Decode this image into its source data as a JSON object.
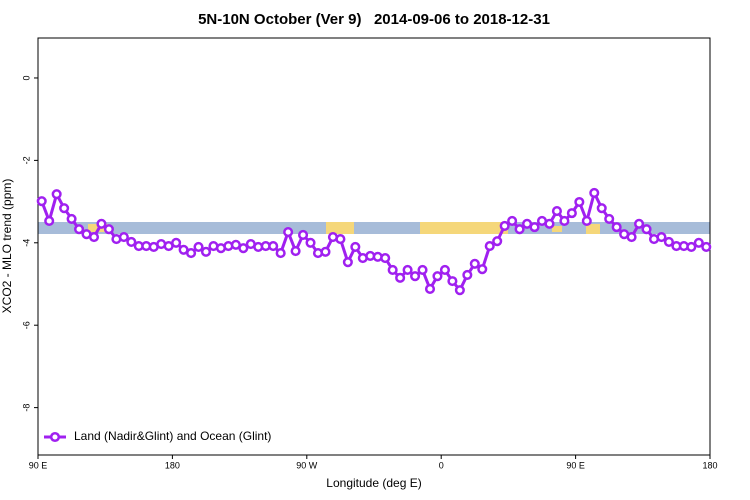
{
  "chart_data": {
    "type": "line",
    "title": "5N-10N October (Ver 9)   2014-09-06 to 2018-12-31",
    "xlabel": "Longitude (deg E)",
    "ylabel": "XCO2 - MLO trend (ppm)",
    "xlim": [
      90,
      540
    ],
    "ylim": [
      -9.15,
      0.97
    ],
    "xticks": [
      {
        "value": 90,
        "label": "90 E"
      },
      180,
      {
        "value": 270,
        "label": "90 W"
      },
      {
        "value": 360,
        "label": "0"
      },
      {
        "value": 450,
        "label": "90 E"
      },
      {
        "value": 540,
        "label": "180"
      }
    ],
    "yticks": [
      0,
      -2,
      -4,
      -6,
      -8
    ],
    "legend": "bottom-left",
    "x": [
      92.5,
      97.5,
      102.5,
      107.5,
      112.5,
      117.5,
      122.5,
      127.5,
      132.5,
      137.5,
      142.5,
      147.5,
      152.5,
      157.5,
      162.5,
      167.5,
      172.5,
      177.5,
      182.5,
      187.5,
      192.5,
      197.5,
      202.5,
      207.5,
      212.5,
      217.5,
      222.5,
      227.5,
      232.5,
      237.5,
      242.5,
      247.5,
      252.5,
      257.5,
      262.5,
      267.5,
      272.5,
      277.5,
      282.5,
      287.5,
      292.5,
      297.5,
      302.5,
      307.5,
      312.5,
      317.5,
      322.5,
      327.5,
      332.5,
      337.5,
      342.5,
      347.5,
      352.5,
      357.5,
      362.5,
      367.5,
      372.5,
      377.5,
      382.5,
      387.5,
      392.5,
      397.5,
      402.5,
      407.5,
      412.5,
      417.5,
      422.5,
      427.5,
      432.5,
      437.5,
      442.5,
      447.5,
      452.5,
      457.5,
      462.5,
      467.5,
      472.5,
      477.5,
      482.5,
      487.5,
      492.5,
      497.5,
      502.5,
      507.5,
      512.5,
      517.5,
      522.5,
      527.5,
      532.5,
      537.5
    ],
    "series": [
      {
        "name": "Land (Nadir&Glint) and Ocean (Glint)",
        "color": "#a020f0",
        "values": [
          -2.99,
          -3.47,
          -2.82,
          -3.16,
          -3.42,
          -3.67,
          -3.79,
          -3.86,
          -3.54,
          -3.67,
          -3.91,
          -3.86,
          -3.98,
          -4.08,
          -4.08,
          -4.1,
          -4.03,
          -4.08,
          -4.0,
          -4.17,
          -4.25,
          -4.1,
          -4.22,
          -4.08,
          -4.13,
          -4.08,
          -4.05,
          -4.13,
          -4.03,
          -4.1,
          -4.08,
          -4.08,
          -4.25,
          -3.74,
          -4.2,
          -3.81,
          -4.0,
          -4.25,
          -4.22,
          -3.86,
          -3.91,
          -4.47,
          -4.1,
          -4.37,
          -4.32,
          -4.34,
          -4.37,
          -4.66,
          -4.85,
          -4.66,
          -4.81,
          -4.66,
          -5.12,
          -4.81,
          -4.66,
          -4.93,
          -5.15,
          -4.78,
          -4.51,
          -4.64,
          -4.08,
          -3.96,
          -3.59,
          -3.47,
          -3.67,
          -3.54,
          -3.62,
          -3.47,
          -3.54,
          -3.23,
          -3.47,
          -3.28,
          -3.01,
          -3.47,
          -2.79,
          -3.16,
          -3.42,
          -3.62,
          -3.79,
          -3.86,
          -3.54,
          -3.67,
          -3.91,
          -3.86,
          -3.98,
          -4.08,
          -4.08,
          -4.1,
          -4.0,
          -4.1
        ]
      }
    ]
  }
}
